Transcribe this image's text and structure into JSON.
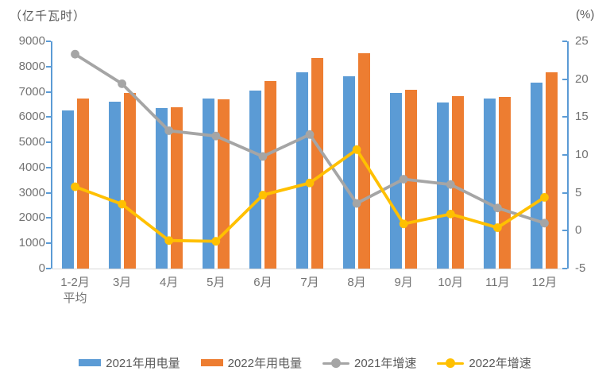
{
  "chart_data": {
    "type": "combo-bar-line",
    "title": "",
    "categories": [
      "1-2月\n平均",
      "3月",
      "4月",
      "5月",
      "6月",
      "7月",
      "8月",
      "9月",
      "10月",
      "11月",
      "12月"
    ],
    "bar_series": [
      {
        "name": "2021年用电量",
        "axis": "left",
        "color": "#5B9BD5",
        "values": [
          6250,
          6620,
          6360,
          6740,
          7040,
          7760,
          7620,
          6950,
          6590,
          6720,
          7370
        ]
      },
      {
        "name": "2022年用电量",
        "axis": "left",
        "color": "#ED7D31",
        "values": [
          6730,
          6950,
          6400,
          6710,
          7440,
          8330,
          8540,
          7090,
          6830,
          6810,
          7780
        ]
      }
    ],
    "line_series": [
      {
        "name": "2021年增速",
        "axis": "right",
        "color": "#A5A5A5",
        "values": [
          23.3,
          19.4,
          13.2,
          12.5,
          9.8,
          12.7,
          3.6,
          6.8,
          6.1,
          3.0,
          1.0
        ]
      },
      {
        "name": "2022年增速",
        "axis": "right",
        "color": "#FFC000",
        "values": [
          5.8,
          3.5,
          -1.3,
          -1.4,
          4.7,
          6.3,
          10.7,
          0.9,
          2.2,
          0.4,
          4.4
        ]
      }
    ],
    "left_axis": {
      "label": "（亿千瓦时）",
      "min": 0,
      "max": 9000,
      "step": 1000,
      "ticks": [
        9000,
        8000,
        7000,
        6000,
        5000,
        4000,
        3000,
        2000,
        1000,
        0
      ]
    },
    "right_axis": {
      "label": "(%)",
      "min": -5,
      "max": 25,
      "step": 5,
      "ticks": [
        25,
        20,
        15,
        10,
        5,
        0,
        -5
      ]
    },
    "legend": [
      "2021年用电量",
      "2022年用电量",
      "2021年增速",
      "2022年增速"
    ],
    "legend_position": "bottom",
    "grid": false,
    "axis_line_color": "#5B9BD5",
    "baseline_color": "#D9D9D9",
    "tick_label_color": "#737373",
    "text_color": "#595959"
  }
}
